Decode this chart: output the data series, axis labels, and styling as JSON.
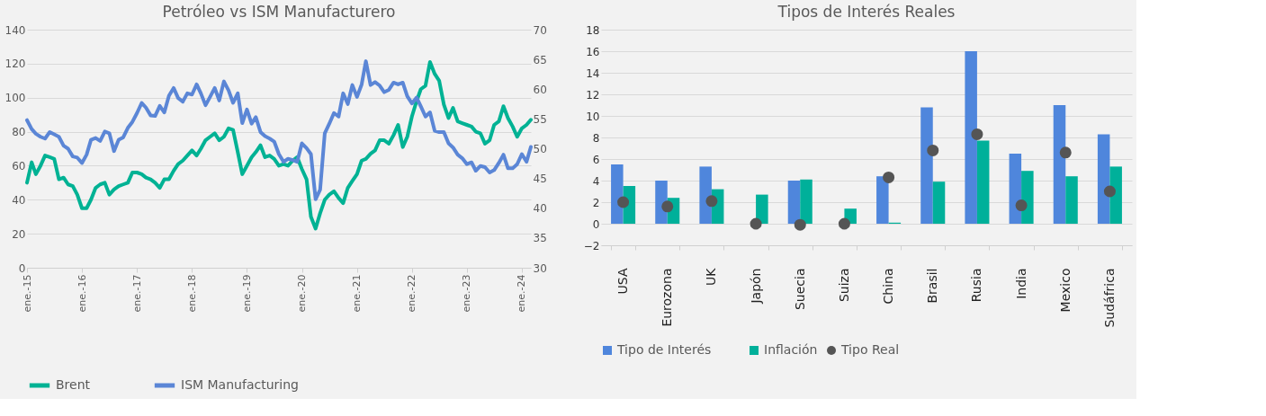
{
  "chart_data": [
    {
      "type": "line",
      "title": "Petróleo vs ISM Manufacturero",
      "legend": "bottom",
      "grid": "y",
      "line_style": "solid",
      "marker": "none",
      "xlim": [
        "2015-01",
        "2024-03"
      ],
      "xticks": [
        {
          "value": "2015-01",
          "label": "ene.-15"
        },
        {
          "value": "2016-01",
          "label": "ene.-16"
        },
        {
          "value": "2017-01",
          "label": "ene.-17"
        },
        {
          "value": "2018-01",
          "label": "ene.-18"
        },
        {
          "value": "2019-01",
          "label": "ene.-19"
        },
        {
          "value": "2020-01",
          "label": "ene.-20"
        },
        {
          "value": "2021-01",
          "label": "ene.-21"
        },
        {
          "value": "2022-01",
          "label": "ene.-22"
        },
        {
          "value": "2023-01",
          "label": "ene.-23"
        },
        {
          "value": "2024-01",
          "label": "ene.-24"
        }
      ],
      "ylim": [
        0,
        140
      ],
      "yticks": [
        0,
        20,
        40,
        60,
        80,
        100,
        120,
        140
      ],
      "y2lim": [
        30,
        70
      ],
      "y2ticks": [
        30,
        35,
        40,
        45,
        50,
        55,
        60,
        65,
        70
      ],
      "x": [
        "2015-01",
        "2015-02",
        "2015-03",
        "2015-04",
        "2015-05",
        "2015-06",
        "2015-07",
        "2015-08",
        "2015-09",
        "2015-10",
        "2015-11",
        "2015-12",
        "2016-01",
        "2016-02",
        "2016-03",
        "2016-04",
        "2016-05",
        "2016-06",
        "2016-07",
        "2016-08",
        "2016-09",
        "2016-10",
        "2016-11",
        "2016-12",
        "2017-01",
        "2017-02",
        "2017-03",
        "2017-04",
        "2017-05",
        "2017-06",
        "2017-07",
        "2017-08",
        "2017-09",
        "2017-10",
        "2017-11",
        "2017-12",
        "2018-01",
        "2018-02",
        "2018-03",
        "2018-04",
        "2018-05",
        "2018-06",
        "2018-07",
        "2018-08",
        "2018-09",
        "2018-10",
        "2018-11",
        "2018-12",
        "2019-01",
        "2019-02",
        "2019-03",
        "2019-04",
        "2019-05",
        "2019-06",
        "2019-07",
        "2019-08",
        "2019-09",
        "2019-10",
        "2019-11",
        "2019-12",
        "2020-01",
        "2020-02",
        "2020-03",
        "2020-04",
        "2020-05",
        "2020-06",
        "2020-07",
        "2020-08",
        "2020-09",
        "2020-10",
        "2020-11",
        "2020-12",
        "2021-01",
        "2021-02",
        "2021-03",
        "2021-04",
        "2021-05",
        "2021-06",
        "2021-07",
        "2021-08",
        "2021-09",
        "2021-10",
        "2021-11",
        "2021-12",
        "2022-01",
        "2022-02",
        "2022-03",
        "2022-04",
        "2022-05",
        "2022-06",
        "2022-07",
        "2022-08",
        "2022-09",
        "2022-10",
        "2022-11",
        "2022-12",
        "2023-01",
        "2023-02",
        "2023-03",
        "2023-04",
        "2023-05",
        "2023-06",
        "2023-07",
        "2023-08",
        "2023-09",
        "2023-10",
        "2023-11",
        "2023-12",
        "2024-01",
        "2024-02",
        "2024-03"
      ],
      "series": [
        {
          "name": "Brent",
          "color": "#00b294",
          "values": [
            50,
            62,
            55,
            60,
            66,
            65,
            64,
            52,
            53,
            49,
            48,
            43,
            35,
            35,
            40,
            47,
            49,
            50,
            43,
            46,
            48,
            49,
            50,
            56,
            56,
            55,
            53,
            52,
            50,
            47,
            52,
            52,
            57,
            61,
            63,
            66,
            69,
            66,
            70,
            75,
            77,
            79,
            75,
            77,
            82,
            81,
            68,
            55,
            60,
            65,
            68,
            72,
            65,
            66,
            64,
            60,
            61,
            60,
            63,
            65,
            58,
            52,
            30,
            23,
            32,
            40,
            43,
            45,
            41,
            38,
            47,
            51,
            55,
            63,
            64,
            67,
            69,
            75,
            75,
            73,
            78,
            84,
            71,
            77,
            89,
            98,
            105,
            107,
            121,
            114,
            110,
            96,
            88,
            94,
            86,
            85,
            84,
            83,
            80,
            79,
            73,
            75,
            84,
            86,
            95,
            88,
            83,
            77,
            82,
            84,
            87
          ]
        },
        {
          "name": "ISM Manufacturing",
          "color": "#5b86d6",
          "axis": "y2",
          "values": [
            54.8,
            53.3,
            52.5,
            52,
            51.7,
            52.8,
            52.4,
            52,
            50.5,
            50,
            48.7,
            48.5,
            47.6,
            49,
            51.5,
            51.8,
            51.3,
            52.9,
            52.6,
            49.6,
            51.5,
            51.9,
            53.5,
            54.5,
            56,
            57.7,
            56.9,
            55.6,
            55.5,
            57.2,
            56.1,
            58.9,
            60.2,
            58.5,
            57.9,
            59.3,
            59.1,
            60.8,
            59.3,
            57.3,
            58.7,
            60.2,
            58.1,
            61.3,
            59.8,
            57.7,
            59.3,
            54.3,
            56.6,
            54.2,
            55.3,
            52.8,
            52.1,
            51.7,
            51.2,
            49.1,
            47.8,
            48.3,
            48.1,
            47.8,
            50.9,
            50.1,
            49.1,
            41.5,
            43.1,
            52.6,
            54.2,
            56,
            55.4,
            59.3,
            57.5,
            60.7,
            58.7,
            60.8,
            64.7,
            60.7,
            61.2,
            60.6,
            59.5,
            59.9,
            61.1,
            60.8,
            61.1,
            58.8,
            57.6,
            58.6,
            57.1,
            55.4,
            56.1,
            53,
            52.8,
            52.8,
            50.9,
            50.2,
            49,
            48.4,
            47.4,
            47.7,
            46.3,
            47.1,
            46.9,
            46,
            46.4,
            47.6,
            49,
            46.7,
            46.7,
            47.4,
            49.1,
            47.8,
            50.3
          ]
        }
      ]
    },
    {
      "type": "bar",
      "title": "Tipos de Interés Reales",
      "legend": "bottom",
      "grid": "y",
      "categories": [
        "USA",
        "Eurozona",
        "UK",
        "Japón",
        "Suecia",
        "Suiza",
        "China",
        "Brasil",
        "Rusia",
        "India",
        "Mexico",
        "Sudáfrica"
      ],
      "ylim": [
        -2,
        18
      ],
      "yticks": [
        -2,
        0,
        2,
        4,
        6,
        8,
        10,
        12,
        14,
        16,
        18
      ],
      "series": [
        {
          "name": "Tipo de Interés",
          "color": "#4f86dc",
          "values": [
            5.5,
            4,
            5.3,
            null,
            4,
            null,
            4.4,
            10.8,
            16,
            6.5,
            11,
            8.3
          ]
        },
        {
          "name": "Inflación",
          "color": "#00b09a",
          "values": [
            3.5,
            2.4,
            3.2,
            2.7,
            4.1,
            1.4,
            0.1,
            3.9,
            7.7,
            4.9,
            4.4,
            5.3
          ]
        },
        {
          "name": "Tipo Real",
          "color": "#555555",
          "type": "scatter",
          "marker": "circle",
          "values": [
            2.0,
            1.6,
            2.1,
            0,
            -0.1,
            0,
            4.3,
            6.8,
            8.3,
            1.7,
            6.6,
            3.0
          ]
        }
      ]
    }
  ]
}
